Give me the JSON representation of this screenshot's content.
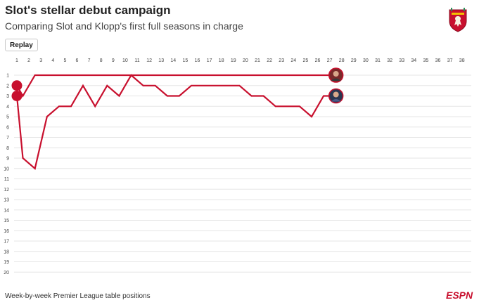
{
  "header": {
    "title": "Slot's stellar debut campaign",
    "subtitle": "Comparing Slot and Klopp's first full seasons in charge"
  },
  "controls": {
    "replay_label": "Replay"
  },
  "footer": {
    "note": "Week-by-week Premier League table positions",
    "brand": "ESPN"
  },
  "icons": {
    "crest": "liverpool-crest-icon",
    "brand_logo": "espn-logo-icon"
  },
  "colors": {
    "line": "#c8102e",
    "grid": "#e6e6e6",
    "text": "#222222"
  },
  "chart_data": {
    "type": "line",
    "title": "Slot's stellar debut campaign",
    "subtitle": "Comparing Slot and Klopp's first full seasons in charge",
    "xlabel": "",
    "ylabel": "",
    "x_ticks": [
      1,
      2,
      3,
      4,
      5,
      6,
      7,
      8,
      9,
      10,
      11,
      12,
      13,
      14,
      15,
      16,
      17,
      18,
      19,
      20,
      21,
      22,
      23,
      24,
      25,
      26,
      27,
      28,
      29,
      30,
      31,
      32,
      33,
      34,
      35,
      36,
      37,
      38
    ],
    "y_ticks": [
      1,
      2,
      3,
      4,
      5,
      6,
      7,
      8,
      9,
      10,
      11,
      12,
      13,
      14,
      15,
      16,
      17,
      18,
      19,
      20
    ],
    "xlim": [
      1,
      38
    ],
    "ylim": [
      1,
      20
    ],
    "y_inverted": true,
    "grid": true,
    "x_axis_position": "top",
    "series": [
      {
        "x": [
          0,
          1,
          2,
          3,
          4,
          5,
          6,
          7,
          8,
          9,
          10,
          11,
          12,
          13,
          14,
          15,
          16,
          17,
          18,
          19,
          20,
          21,
          22,
          23,
          24,
          25,
          26,
          27
        ],
        "values": [
          2,
          3,
          1,
          1,
          1,
          1,
          1,
          1,
          1,
          1,
          1,
          1,
          1,
          1,
          1,
          1,
          1,
          1,
          1,
          1,
          1,
          1,
          1,
          1,
          1,
          1,
          1,
          1
        ]
      },
      {
        "x": [
          0,
          1,
          2,
          3,
          4,
          5,
          6,
          7,
          8,
          9,
          10,
          11,
          12,
          13,
          14,
          15,
          16,
          17,
          18,
          19,
          20,
          21,
          22,
          23,
          24,
          25,
          26,
          27
        ],
        "values": [
          3,
          9,
          10,
          5,
          4,
          4,
          2,
          4,
          2,
          3,
          1,
          2,
          2,
          3,
          3,
          2,
          2,
          2,
          2,
          2,
          3,
          3,
          4,
          4,
          4,
          5,
          3,
          3
        ]
      }
    ]
  },
  "footer_note_unused": ""
}
